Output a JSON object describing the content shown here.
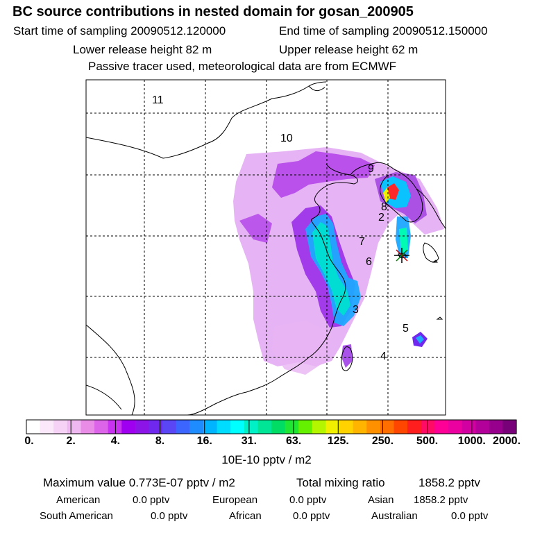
{
  "header": {
    "title": "BC  source contributions in nested domain for gosan_200905",
    "start_label": "Start time of sampling 20090512.120000",
    "end_label": "End time of sampling 20090512.150000",
    "lower_label": "Lower release height   82 m",
    "upper_label": "Upper release height   62 m",
    "tracer_label": "Passive tracer used, meteorological data are from ECMWF"
  },
  "map": {
    "region_labels": [
      "11",
      "10",
      "9",
      "8",
      "2",
      "7",
      "6",
      "3",
      "5",
      "4"
    ],
    "receptor_marker": "star-marker"
  },
  "colorbar": {
    "colors": [
      "#ffffff",
      "#fbe9fb",
      "#f6d2f6",
      "#f0b8f0",
      "#e88ce8",
      "#dc64e8",
      "#c832f0",
      "#a000f0",
      "#8c14e6",
      "#6e28ee",
      "#5a46f5",
      "#3c64ff",
      "#1e8cff",
      "#00b4ff",
      "#00dcff",
      "#00ffff",
      "#00f0c8",
      "#00e696",
      "#00dc64",
      "#1ee632",
      "#64f000",
      "#b4f500",
      "#f0f000",
      "#ffd200",
      "#ffb400",
      "#ff9100",
      "#ff6e00",
      "#ff4600",
      "#ff1e1e",
      "#ff0a64",
      "#ff0096",
      "#eb00a0",
      "#d200a0",
      "#b4009b",
      "#96008c",
      "#780078"
    ],
    "tick_labels": [
      "0.",
      "2.",
      "4.",
      "8.",
      "16.",
      "31.",
      "63.",
      "125.",
      "250.",
      "500.",
      "1000.",
      "2000."
    ],
    "units": "10E-10 pptv / m2"
  },
  "footer": {
    "max_value_label": "Maximum value  0.773E-07 pptv / m2",
    "total_label": "Total mixing ratio",
    "total_value": "1858.2 pptv",
    "american_label": "American",
    "american_value": "0.0 pptv",
    "european_label": "European",
    "european_value": "0.0 pptv",
    "asian_label": "Asian",
    "asian_value": "1858.2 pptv",
    "south_american_label": "South American",
    "south_american_value": "0.0 pptv",
    "african_label": "African",
    "african_value": "0.0 pptv",
    "australian_label": "Australian",
    "australian_value": "0.0 pptv"
  },
  "colors": {
    "plume_low": "#d98ef0",
    "plume_mid": "#8a2be2",
    "plume_high": "#00d4c8",
    "hotspot": "#ff1e1e",
    "coastline": "#000000",
    "grid": "#000000"
  }
}
